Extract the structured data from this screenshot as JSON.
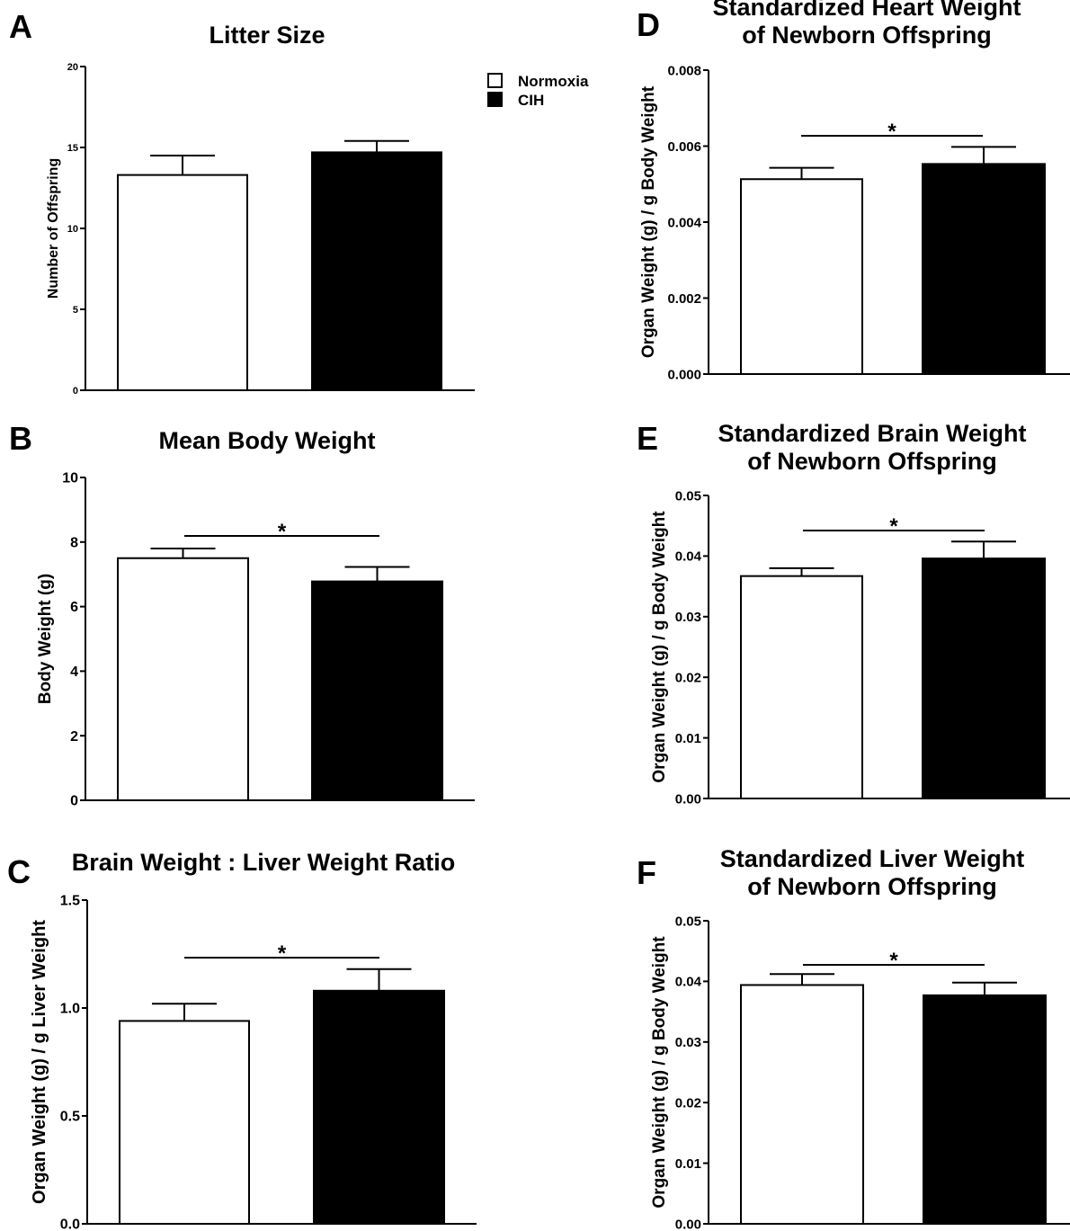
{
  "legend": {
    "items": [
      {
        "label": "Normoxia",
        "color": "#ffffff"
      },
      {
        "label": "CIH",
        "color": "#000000"
      }
    ]
  },
  "chart_data": [
    {
      "panel": "A",
      "type": "bar",
      "title": [
        "Litter Size"
      ],
      "ylabel": "Number of Offspring",
      "categories": [
        "Normoxia",
        "CIH"
      ],
      "values": [
        13.3,
        14.7
      ],
      "errors": [
        1.2,
        0.7
      ],
      "ylim": [
        0,
        20
      ],
      "yticks": [
        "0",
        "5",
        "10",
        "15",
        "20"
      ],
      "significance": ""
    },
    {
      "panel": "B",
      "type": "bar",
      "title": [
        "Mean Body Weight"
      ],
      "ylabel": "Body Weight (g)",
      "categories": [
        "Normoxia",
        "CIH"
      ],
      "values": [
        7.5,
        6.78
      ],
      "errors": [
        0.3,
        0.45
      ],
      "ylim": [
        0,
        10
      ],
      "yticks": [
        "0",
        "2",
        "4",
        "6",
        "8",
        "10"
      ],
      "significance": "*"
    },
    {
      "panel": "C",
      "type": "bar",
      "title": [
        "Brain Weight : Liver Weight Ratio"
      ],
      "ylabel": "Organ Weight (g) / g Liver Weight",
      "categories": [
        "Normoxia",
        "CIH"
      ],
      "values": [
        0.94,
        1.08
      ],
      "errors": [
        0.08,
        0.1
      ],
      "ylim": [
        0,
        1.5
      ],
      "yticks": [
        "0.0",
        "0.5",
        "1.0",
        "1.5"
      ],
      "significance": "*"
    },
    {
      "panel": "D",
      "type": "bar",
      "title": [
        "Standardized Heart Weight",
        "of Newborn Offspring"
      ],
      "ylabel": "Organ Weight (g) / g Body Weight",
      "categories": [
        "Normoxia",
        "CIH"
      ],
      "values": [
        0.00513,
        0.00553
      ],
      "errors": [
        0.0003,
        0.00045
      ],
      "ylim": [
        0,
        0.008
      ],
      "yticks": [
        "0.000",
        "0.002",
        "0.004",
        "0.006",
        "0.008"
      ],
      "significance": "*"
    },
    {
      "panel": "E",
      "type": "bar",
      "title": [
        "Standardized Brain Weight",
        "of  Newborn Offspring"
      ],
      "ylabel": "Organ Weight (g) / g Body Weight",
      "categories": [
        "Normoxia",
        "CIH"
      ],
      "values": [
        0.0367,
        0.0396
      ],
      "errors": [
        0.0013,
        0.0028
      ],
      "ylim": [
        0,
        0.05
      ],
      "yticks": [
        "0.00",
        "0.01",
        "0.02",
        "0.03",
        "0.04",
        "0.05"
      ],
      "significance": "*"
    },
    {
      "panel": "F",
      "type": "bar",
      "title": [
        "Standardized Liver Weight",
        "of Newborn Offspring"
      ],
      "ylabel": "Organ Weight (g) / g Body Weight",
      "categories": [
        "Normoxia",
        "CIH"
      ],
      "values": [
        0.0394,
        0.0377
      ],
      "errors": [
        0.0018,
        0.0021
      ],
      "ylim": [
        0,
        0.05
      ],
      "yticks": [
        "0.00",
        "0.01",
        "0.02",
        "0.03",
        "0.04",
        "0.05"
      ],
      "significance": "*"
    }
  ]
}
